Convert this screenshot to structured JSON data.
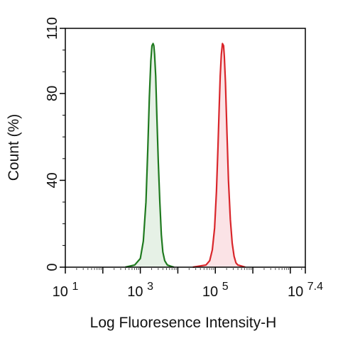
{
  "chart_data": {
    "type": "area",
    "xlabel": "Log Fluoresence Intensity-H",
    "ylabel": "Count  (%)",
    "x_scale": "log10",
    "xlim": [
      1,
      7.4
    ],
    "ylim": [
      0,
      110
    ],
    "x_ticks": [
      {
        "value": 1,
        "base": "10",
        "exp": "1"
      },
      {
        "value": 3,
        "base": "10",
        "exp": "3"
      },
      {
        "value": 5,
        "base": "10",
        "exp": "5"
      },
      {
        "value": 7.4,
        "base": "10",
        "exp": "7.4"
      }
    ],
    "y_ticks": [
      0,
      40,
      80,
      110
    ],
    "grid": false,
    "legend": "none",
    "series": [
      {
        "color": "#1f7a1f",
        "fill": "#e6f1e6",
        "x": [
          2.6,
          2.85,
          3.0,
          3.08,
          3.15,
          3.2,
          3.24,
          3.28,
          3.31,
          3.34,
          3.36,
          3.38,
          3.41,
          3.44,
          3.48,
          3.52,
          3.56,
          3.6,
          3.65,
          3.72,
          3.8,
          3.9
        ],
        "y": [
          0,
          1,
          4,
          12,
          30,
          55,
          78,
          95,
          102,
          103,
          102,
          98,
          88,
          70,
          48,
          30,
          15,
          7,
          3,
          1,
          0.5,
          0
        ]
      },
      {
        "color": "#d9262b",
        "fill": "#fbe3e6",
        "x": [
          4.4,
          4.75,
          4.85,
          4.92,
          4.98,
          5.03,
          5.07,
          5.1,
          5.13,
          5.16,
          5.19,
          5.22,
          5.24,
          5.27,
          5.31,
          5.35,
          5.4,
          5.45,
          5.5,
          5.55,
          5.6,
          5.7,
          5.8
        ],
        "y": [
          0,
          1,
          3,
          8,
          18,
          35,
          55,
          72,
          88,
          98,
          103,
          102,
          97,
          85,
          62,
          40,
          22,
          11,
          5,
          2,
          1,
          0.5,
          0
        ]
      }
    ]
  }
}
